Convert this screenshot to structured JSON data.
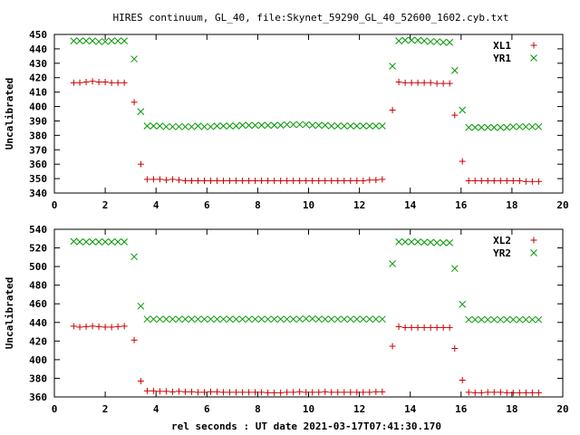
{
  "title": "HIRES continuum, GL_40, file:Skynet_59290_GL_40_52600_1602.cyb.txt",
  "xlabel": "rel seconds : UT date 2021-03-17T07:41:30.170",
  "colors": {
    "series1": "#cc0000",
    "series2": "#009900",
    "axis": "#000000"
  },
  "chart_data": [
    {
      "type": "scatter",
      "ylabel": "Uncalibrated",
      "xlim": [
        0,
        20
      ],
      "ylim": [
        340,
        450
      ],
      "xticks": [
        "0",
        "2",
        "4",
        "6",
        "8",
        "10",
        "12",
        "14",
        "16",
        "18",
        "20"
      ],
      "yticks": [
        "340",
        "350",
        "360",
        "370",
        "380",
        "390",
        "400",
        "410",
        "420",
        "430",
        "440",
        "450"
      ],
      "legend_position": "top-right",
      "grid": false,
      "x": [
        0.76,
        1.0,
        1.25,
        1.5,
        1.75,
        2.0,
        2.25,
        2.5,
        2.75,
        3.14,
        3.4,
        3.65,
        3.9,
        4.15,
        4.4,
        4.65,
        4.9,
        5.15,
        5.4,
        5.65,
        5.9,
        6.15,
        6.4,
        6.65,
        6.9,
        7.15,
        7.4,
        7.65,
        7.9,
        8.15,
        8.4,
        8.65,
        8.9,
        9.15,
        9.4,
        9.65,
        9.9,
        10.15,
        10.4,
        10.65,
        10.9,
        11.15,
        11.4,
        11.65,
        11.9,
        12.15,
        12.4,
        12.65,
        12.9,
        13.3,
        13.55,
        13.8,
        14.05,
        14.3,
        14.55,
        14.8,
        15.05,
        15.3,
        15.55,
        15.75,
        16.05,
        16.3,
        16.55,
        16.8,
        17.05,
        17.3,
        17.55,
        17.8,
        18.05,
        18.3,
        18.55,
        18.8,
        19.05
      ],
      "series": [
        {
          "name": "XL1",
          "marker": "plus",
          "values": [
            416.5,
            416.5,
            417,
            417.5,
            417,
            417,
            416.5,
            416.5,
            416.5,
            403,
            360,
            349.5,
            349.5,
            349.5,
            349,
            349.5,
            349,
            348.5,
            348.5,
            348.5,
            348.5,
            348.5,
            348.5,
            348.5,
            348.5,
            348.5,
            348.5,
            348.5,
            348.5,
            348.5,
            348.5,
            348.5,
            348.5,
            348.5,
            348.5,
            348.5,
            348.5,
            348.5,
            348.5,
            348.5,
            348.5,
            348.5,
            348.5,
            348.5,
            348.5,
            348.5,
            349,
            349,
            349.5,
            397.5,
            417,
            416.5,
            416.5,
            416.5,
            416.5,
            416.5,
            416,
            416,
            416,
            394,
            362,
            348.5,
            348.5,
            348.5,
            348.5,
            348.5,
            348.5,
            348.5,
            348.5,
            348.5,
            348,
            348,
            348
          ]
        },
        {
          "name": "YR1",
          "marker": "cross",
          "values": [
            445.5,
            445.5,
            445.5,
            445.5,
            445,
            445,
            445.5,
            445.5,
            445.5,
            433,
            396.5,
            386.5,
            386.5,
            386.5,
            386,
            386,
            386,
            386,
            386,
            386.5,
            386,
            386,
            386.5,
            386.5,
            386.5,
            386.5,
            387,
            387,
            387,
            387,
            387,
            387,
            387,
            387.5,
            387.5,
            387.5,
            387.5,
            387,
            387,
            387,
            386.5,
            386.5,
            386.5,
            386.5,
            386.5,
            386.5,
            386.5,
            386.5,
            386.5,
            428,
            445.5,
            446,
            446,
            446,
            445.5,
            445,
            445,
            444.5,
            444.5,
            425,
            397.5,
            385.5,
            385.5,
            385.5,
            385.5,
            385.5,
            385.5,
            385.5,
            386,
            386,
            386,
            386,
            386
          ]
        }
      ]
    },
    {
      "type": "scatter",
      "ylabel": "Uncalibrated",
      "xlim": [
        0,
        20
      ],
      "ylim": [
        360,
        540
      ],
      "xticks": [
        "0",
        "2",
        "4",
        "6",
        "8",
        "10",
        "12",
        "14",
        "16",
        "18",
        "20"
      ],
      "yticks": [
        "360",
        "380",
        "400",
        "420",
        "440",
        "460",
        "480",
        "500",
        "520",
        "540"
      ],
      "legend_position": "top-right",
      "grid": false,
      "x": [
        0.76,
        1.0,
        1.25,
        1.5,
        1.75,
        2.0,
        2.25,
        2.5,
        2.75,
        3.14,
        3.4,
        3.65,
        3.9,
        4.15,
        4.4,
        4.65,
        4.9,
        5.15,
        5.4,
        5.65,
        5.9,
        6.15,
        6.4,
        6.65,
        6.9,
        7.15,
        7.4,
        7.65,
        7.9,
        8.15,
        8.4,
        8.65,
        8.9,
        9.15,
        9.4,
        9.65,
        9.9,
        10.15,
        10.4,
        10.65,
        10.9,
        11.15,
        11.4,
        11.65,
        11.9,
        12.15,
        12.4,
        12.65,
        12.9,
        13.3,
        13.55,
        13.8,
        14.05,
        14.3,
        14.55,
        14.8,
        15.05,
        15.3,
        15.55,
        15.75,
        16.05,
        16.3,
        16.55,
        16.8,
        17.05,
        17.3,
        17.55,
        17.8,
        18.05,
        18.3,
        18.55,
        18.8,
        19.05
      ],
      "series": [
        {
          "name": "XL2",
          "marker": "plus",
          "values": [
            436,
            435,
            435.5,
            436,
            435.5,
            435,
            435,
            435.5,
            436,
            421,
            377,
            366.5,
            366.5,
            366,
            366,
            365.5,
            366,
            365.5,
            365.5,
            365,
            365,
            365.5,
            365.5,
            365,
            365,
            365,
            365,
            365,
            365,
            365,
            364.5,
            364.5,
            364.5,
            365,
            365,
            365.5,
            365,
            365,
            365,
            365.5,
            365,
            365,
            365,
            365,
            365,
            365,
            365,
            365.5,
            365.5,
            414.5,
            435.5,
            434.5,
            434.5,
            434.5,
            434.5,
            434.5,
            434.5,
            434.5,
            434.5,
            412,
            378,
            365,
            364.5,
            364.5,
            365,
            365,
            365,
            364.5,
            364.5,
            364.5,
            364.5,
            364.5,
            364.5
          ]
        },
        {
          "name": "YR2",
          "marker": "cross",
          "values": [
            527,
            526.5,
            526.5,
            526.5,
            526.5,
            526.5,
            526.5,
            526.5,
            526.5,
            510.5,
            457.5,
            443.5,
            443.5,
            443.5,
            443.5,
            443.5,
            443.5,
            443.5,
            443.5,
            443.5,
            443.5,
            443.5,
            443.5,
            443.5,
            443.5,
            443.5,
            443.5,
            443.5,
            443.5,
            443.5,
            443.5,
            443.5,
            443.5,
            443.5,
            443.5,
            443.5,
            444,
            444,
            443.5,
            443.5,
            443.5,
            443.5,
            443.5,
            443.5,
            443.5,
            443.5,
            443.5,
            443.5,
            443.5,
            503,
            526.5,
            526.5,
            526.5,
            526.5,
            526,
            526,
            525.5,
            525.5,
            525.5,
            498,
            459.5,
            443,
            443,
            443,
            443,
            443,
            443,
            443,
            443,
            443,
            443,
            443,
            443
          ]
        }
      ]
    }
  ]
}
